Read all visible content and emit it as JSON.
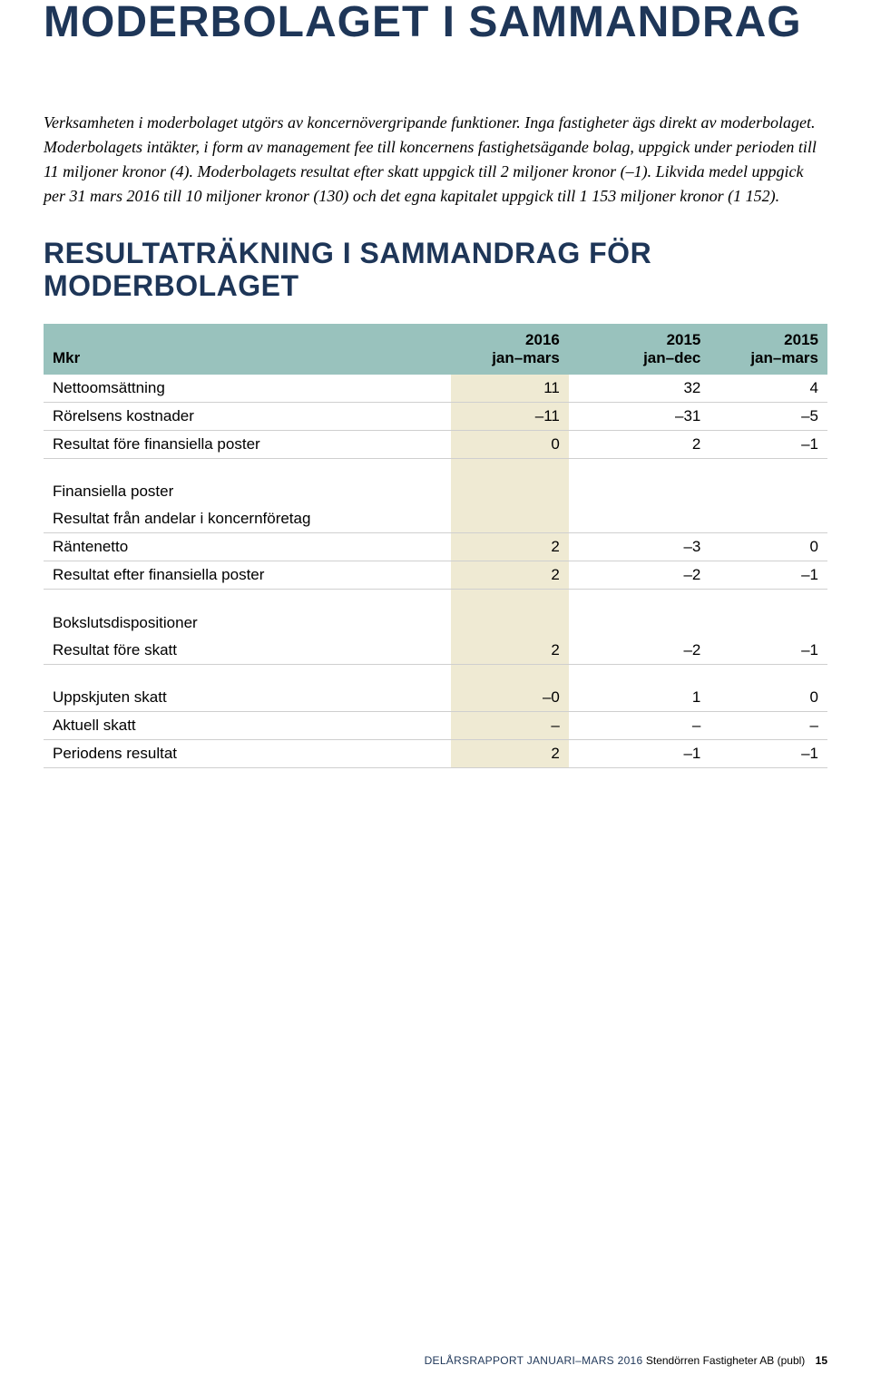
{
  "colors": {
    "heading": "#1e3658",
    "table_header_bg": "#99c2bd",
    "highlight_col_bg": "#efead3",
    "row_border": "#cfcfcf",
    "background": "#ffffff"
  },
  "main_title": "MODERBOLAGET I SAMMANDRAG",
  "intro_text": "Verksamheten i moderbolaget utgörs av koncernövergripande funktioner. Inga fastigheter ägs direkt av moderbolaget. Moderbolagets intäkter, i form av management fee till koncernens fastighetsägande bolag, uppgick under perioden till 11 miljoner kronor (4). Moderbolagets resultat efter skatt uppgick till 2 miljoner kronor (–1). Likvida medel uppgick per 31 mars 2016 till 10 miljoner kronor (130) och det egna kapitalet uppgick till 1 153 miljoner kronor (1 152).",
  "section_title": "RESULTATRÄKNING I SAMMANDRAG FÖR MODERBOLAGET",
  "table": {
    "header": {
      "mkr": "Mkr",
      "c1_y": "2016",
      "c1_p": "jan–mars",
      "c2_y": "2015",
      "c2_p": "jan–dec",
      "c3_y": "2015",
      "c3_p": "jan–mars"
    },
    "rows": {
      "r0": {
        "label": "Nettoomsättning",
        "v1": "11",
        "v2": "32",
        "v3": "4"
      },
      "r1": {
        "label": "Rörelsens kostnader",
        "v1": "–11",
        "v2": "–31",
        "v3": "–5"
      },
      "r2": {
        "label": "Resultat före finansiella poster",
        "v1": "0",
        "v2": "2",
        "v3": "–1"
      },
      "r3": {
        "label": "Finansiella poster",
        "v1": "",
        "v2": "",
        "v3": ""
      },
      "r4": {
        "label": "Resultat från andelar i koncernföretag",
        "v1": "",
        "v2": "",
        "v3": ""
      },
      "r5": {
        "label": "Räntenetto",
        "v1": "2",
        "v2": "–3",
        "v3": "0"
      },
      "r6": {
        "label": "Resultat efter finansiella poster",
        "v1": "2",
        "v2": "–2",
        "v3": "–1"
      },
      "r7": {
        "label": "Bokslutsdispositioner",
        "v1": "",
        "v2": "",
        "v3": ""
      },
      "r8": {
        "label": "Resultat före skatt",
        "v1": "2",
        "v2": "–2",
        "v3": "–1"
      },
      "r9": {
        "label": "Uppskjuten skatt",
        "v1": "–0",
        "v2": "1",
        "v3": "0"
      },
      "r10": {
        "label": "Aktuell skatt",
        "v1": "–",
        "v2": "–",
        "v3": "–"
      },
      "r11": {
        "label": "Periodens resultat",
        "v1": "2",
        "v2": "–1",
        "v3": "–1"
      }
    }
  },
  "footer": {
    "lead": "DELÅRSRAPPORT JANUARI–MARS 2016",
    "company": "Stendörren Fastigheter AB (publ)",
    "page": "15"
  }
}
